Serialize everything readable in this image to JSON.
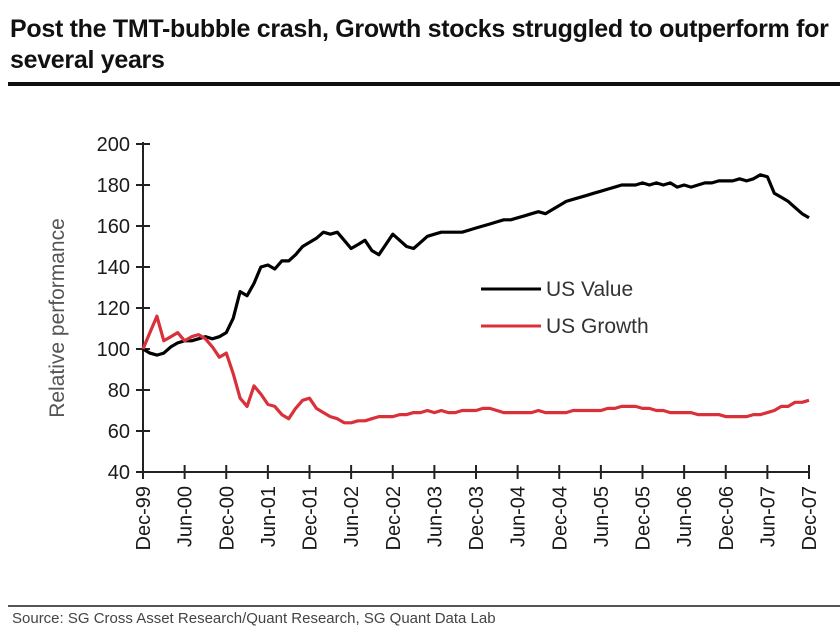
{
  "title": "Post the TMT-bubble crash, Growth stocks struggled to outperform for several years",
  "source": "Source: SG Cross Asset Research/Quant Research, SG Quant Data Lab",
  "chart_data": {
    "type": "line",
    "title": "Post the TMT-bubble crash, Growth stocks struggled to outperform for several years",
    "xlabel": "",
    "ylabel": "Relative performance",
    "ylim": [
      40,
      200
    ],
    "yticks": [
      40,
      60,
      80,
      100,
      120,
      140,
      160,
      180,
      200
    ],
    "x_start": "Dec-99",
    "x_end": "Dec-07",
    "x_unit": "months since Dec-99",
    "xlim": [
      0,
      96
    ],
    "xticks": [
      {
        "label": "Dec-99",
        "month": 0
      },
      {
        "label": "Jun-00",
        "month": 6
      },
      {
        "label": "Dec-00",
        "month": 12
      },
      {
        "label": "Jun-01",
        "month": 18
      },
      {
        "label": "Dec-01",
        "month": 24
      },
      {
        "label": "Jun-02",
        "month": 30
      },
      {
        "label": "Dec-02",
        "month": 36
      },
      {
        "label": "Jun-03",
        "month": 42
      },
      {
        "label": "Dec-03",
        "month": 48
      },
      {
        "label": "Jun-04",
        "month": 54
      },
      {
        "label": "Dec-04",
        "month": 60
      },
      {
        "label": "Jun-05",
        "month": 66
      },
      {
        "label": "Dec-05",
        "month": 72
      },
      {
        "label": "Jun-06",
        "month": 78
      },
      {
        "label": "Dec-06",
        "month": 84
      },
      {
        "label": "Jun-07",
        "month": 90
      },
      {
        "label": "Dec-07",
        "month": 96
      }
    ],
    "grid": false,
    "legend": "center-right",
    "series": [
      {
        "name": "US Value",
        "color": "#000000",
        "points": [
          [
            0,
            100
          ],
          [
            1,
            98
          ],
          [
            2,
            97
          ],
          [
            3,
            98
          ],
          [
            4,
            101
          ],
          [
            5,
            103
          ],
          [
            6,
            104
          ],
          [
            7,
            104
          ],
          [
            8,
            105
          ],
          [
            9,
            106
          ],
          [
            10,
            105
          ],
          [
            11,
            106
          ],
          [
            12,
            108
          ],
          [
            13,
            115
          ],
          [
            14,
            128
          ],
          [
            15,
            126
          ],
          [
            16,
            132
          ],
          [
            17,
            140
          ],
          [
            18,
            141
          ],
          [
            19,
            139
          ],
          [
            20,
            143
          ],
          [
            21,
            143
          ],
          [
            22,
            146
          ],
          [
            23,
            150
          ],
          [
            24,
            152
          ],
          [
            25,
            154
          ],
          [
            26,
            157
          ],
          [
            27,
            156
          ],
          [
            28,
            157
          ],
          [
            29,
            153
          ],
          [
            30,
            149
          ],
          [
            31,
            151
          ],
          [
            32,
            153
          ],
          [
            33,
            148
          ],
          [
            34,
            146
          ],
          [
            35,
            151
          ],
          [
            36,
            156
          ],
          [
            37,
            153
          ],
          [
            38,
            150
          ],
          [
            39,
            149
          ],
          [
            40,
            152
          ],
          [
            41,
            155
          ],
          [
            42,
            156
          ],
          [
            43,
            157
          ],
          [
            44,
            157
          ],
          [
            45,
            157
          ],
          [
            46,
            157
          ],
          [
            47,
            158
          ],
          [
            48,
            159
          ],
          [
            49,
            160
          ],
          [
            50,
            161
          ],
          [
            51,
            162
          ],
          [
            52,
            163
          ],
          [
            53,
            163
          ],
          [
            54,
            164
          ],
          [
            55,
            165
          ],
          [
            56,
            166
          ],
          [
            57,
            167
          ],
          [
            58,
            166
          ],
          [
            59,
            168
          ],
          [
            60,
            170
          ],
          [
            61,
            172
          ],
          [
            62,
            173
          ],
          [
            63,
            174
          ],
          [
            64,
            175
          ],
          [
            65,
            176
          ],
          [
            66,
            177
          ],
          [
            67,
            178
          ],
          [
            68,
            179
          ],
          [
            69,
            180
          ],
          [
            70,
            180
          ],
          [
            71,
            180
          ],
          [
            72,
            181
          ],
          [
            73,
            180
          ],
          [
            74,
            181
          ],
          [
            75,
            180
          ],
          [
            76,
            181
          ],
          [
            77,
            179
          ],
          [
            78,
            180
          ],
          [
            79,
            179
          ],
          [
            80,
            180
          ],
          [
            81,
            181
          ],
          [
            82,
            181
          ],
          [
            83,
            182
          ],
          [
            84,
            182
          ],
          [
            85,
            182
          ],
          [
            86,
            183
          ],
          [
            87,
            182
          ],
          [
            88,
            183
          ],
          [
            89,
            185
          ],
          [
            90,
            184
          ],
          [
            91,
            176
          ],
          [
            92,
            174
          ],
          [
            93,
            172
          ],
          [
            94,
            169
          ],
          [
            95,
            166
          ],
          [
            96,
            164
          ]
        ]
      },
      {
        "name": "US Growth",
        "color": "#d9303a",
        "points": [
          [
            0,
            100
          ],
          [
            1,
            108
          ],
          [
            2,
            116
          ],
          [
            3,
            104
          ],
          [
            4,
            106
          ],
          [
            5,
            108
          ],
          [
            6,
            104
          ],
          [
            7,
            106
          ],
          [
            8,
            107
          ],
          [
            9,
            105
          ],
          [
            10,
            101
          ],
          [
            11,
            96
          ],
          [
            12,
            98
          ],
          [
            13,
            88
          ],
          [
            14,
            76
          ],
          [
            15,
            72
          ],
          [
            16,
            82
          ],
          [
            17,
            78
          ],
          [
            18,
            73
          ],
          [
            19,
            72
          ],
          [
            20,
            68
          ],
          [
            21,
            66
          ],
          [
            22,
            71
          ],
          [
            23,
            75
          ],
          [
            24,
            76
          ],
          [
            25,
            71
          ],
          [
            26,
            69
          ],
          [
            27,
            67
          ],
          [
            28,
            66
          ],
          [
            29,
            64
          ],
          [
            30,
            64
          ],
          [
            31,
            65
          ],
          [
            32,
            65
          ],
          [
            33,
            66
          ],
          [
            34,
            67
          ],
          [
            35,
            67
          ],
          [
            36,
            67
          ],
          [
            37,
            68
          ],
          [
            38,
            68
          ],
          [
            39,
            69
          ],
          [
            40,
            69
          ],
          [
            41,
            70
          ],
          [
            42,
            69
          ],
          [
            43,
            70
          ],
          [
            44,
            69
          ],
          [
            45,
            69
          ],
          [
            46,
            70
          ],
          [
            47,
            70
          ],
          [
            48,
            70
          ],
          [
            49,
            71
          ],
          [
            50,
            71
          ],
          [
            51,
            70
          ],
          [
            52,
            69
          ],
          [
            53,
            69
          ],
          [
            54,
            69
          ],
          [
            55,
            69
          ],
          [
            56,
            69
          ],
          [
            57,
            70
          ],
          [
            58,
            69
          ],
          [
            59,
            69
          ],
          [
            60,
            69
          ],
          [
            61,
            69
          ],
          [
            62,
            70
          ],
          [
            63,
            70
          ],
          [
            64,
            70
          ],
          [
            65,
            70
          ],
          [
            66,
            70
          ],
          [
            67,
            71
          ],
          [
            68,
            71
          ],
          [
            69,
            72
          ],
          [
            70,
            72
          ],
          [
            71,
            72
          ],
          [
            72,
            71
          ],
          [
            73,
            71
          ],
          [
            74,
            70
          ],
          [
            75,
            70
          ],
          [
            76,
            69
          ],
          [
            77,
            69
          ],
          [
            78,
            69
          ],
          [
            79,
            69
          ],
          [
            80,
            68
          ],
          [
            81,
            68
          ],
          [
            82,
            68
          ],
          [
            83,
            68
          ],
          [
            84,
            67
          ],
          [
            85,
            67
          ],
          [
            86,
            67
          ],
          [
            87,
            67
          ],
          [
            88,
            68
          ],
          [
            89,
            68
          ],
          [
            90,
            69
          ],
          [
            91,
            70
          ],
          [
            92,
            72
          ],
          [
            93,
            72
          ],
          [
            94,
            74
          ],
          [
            95,
            74
          ],
          [
            96,
            75
          ]
        ]
      }
    ]
  }
}
